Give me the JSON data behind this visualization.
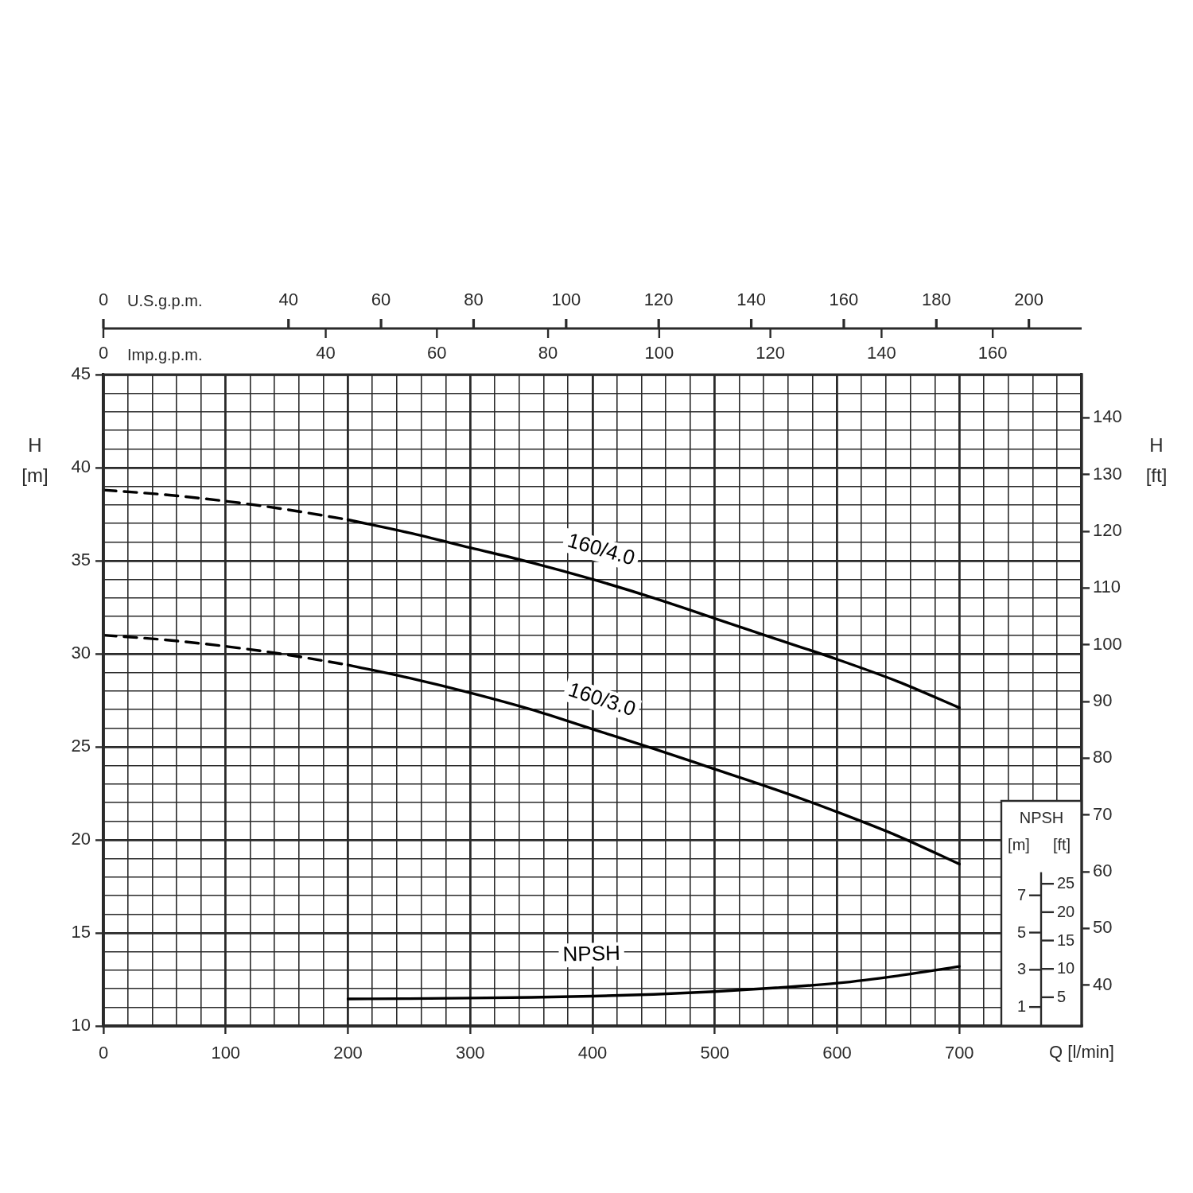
{
  "chart_data": [
    {
      "type": "line",
      "xlabel": "Q [l/min]",
      "ylabel": "H [m]",
      "y2label": "H [ft]",
      "x2label": "U.S.g.p.m.",
      "xlim": [
        0,
        800
      ],
      "xticks": [
        0,
        {
          "value": 20,
          "label": null
        },
        {
          "value": 40,
          "label": null
        },
        {
          "value": 60,
          "label": null
        },
        {
          "value": 80,
          "label": null
        },
        100,
        {
          "value": 120,
          "label": null
        },
        {
          "value": 140,
          "label": null
        },
        {
          "value": 160,
          "label": null
        },
        {
          "value": 180,
          "label": null
        },
        200,
        {
          "value": 220,
          "label": null
        },
        {
          "value": 240,
          "label": null
        },
        {
          "value": 260,
          "label": null
        },
        {
          "value": 280,
          "label": null
        },
        300,
        {
          "value": 320,
          "label": null
        },
        {
          "value": 340,
          "label": null
        },
        {
          "value": 360,
          "label": null
        },
        {
          "value": 380,
          "label": null
        },
        400,
        {
          "value": 420,
          "label": null
        },
        {
          "value": 440,
          "label": null
        },
        {
          "value": 460,
          "label": null
        },
        {
          "value": 480,
          "label": null
        },
        500,
        {
          "value": 520,
          "label": null
        },
        {
          "value": 540,
          "label": null
        },
        {
          "value": 560,
          "label": null
        },
        {
          "value": 580,
          "label": null
        },
        600,
        {
          "value": 620,
          "label": null
        },
        {
          "value": 640,
          "label": null
        },
        {
          "value": 660,
          "label": null
        },
        {
          "value": 680,
          "label": null
        },
        700,
        {
          "value": 720,
          "label": null
        },
        {
          "value": 740,
          "label": null
        },
        {
          "value": 760,
          "label": null
        },
        {
          "value": 780,
          "label": null
        }
      ],
      "ylim": [
        10,
        45
      ],
      "yticks": [
        10,
        {
          "value": 11,
          "label": null
        },
        {
          "value": 12,
          "label": null
        },
        {
          "value": 13,
          "label": null
        },
        {
          "value": 14,
          "label": null
        },
        15,
        {
          "value": 16,
          "label": null
        },
        {
          "value": 17,
          "label": null
        },
        {
          "value": 18,
          "label": null
        },
        {
          "value": 19,
          "label": null
        },
        20,
        {
          "value": 21,
          "label": null
        },
        {
          "value": 22,
          "label": null
        },
        {
          "value": 23,
          "label": null
        },
        {
          "value": 24,
          "label": null
        },
        25,
        {
          "value": 26,
          "label": null
        },
        {
          "value": 27,
          "label": null
        },
        {
          "value": 28,
          "label": null
        },
        {
          "value": 29,
          "label": null
        },
        30,
        {
          "value": 31,
          "label": null
        },
        {
          "value": 32,
          "label": null
        },
        {
          "value": 33,
          "label": null
        },
        {
          "value": 34,
          "label": null
        },
        35,
        {
          "value": 36,
          "label": null
        },
        {
          "value": 37,
          "label": null
        },
        {
          "value": 38,
          "label": null
        },
        {
          "value": 39,
          "label": null
        },
        40,
        {
          "value": 41,
          "label": null
        },
        {
          "value": 42,
          "label": null
        },
        {
          "value": 43,
          "label": null
        },
        {
          "value": 44,
          "label": null
        },
        45
      ],
      "y2lim": [
        32.8,
        147.6
      ],
      "y2ticks": [
        40,
        50,
        60,
        70,
        80,
        90,
        100,
        110,
        120,
        130,
        140
      ],
      "x2lim": [
        0,
        211.4
      ],
      "x2ticks": [
        0,
        40,
        60,
        80,
        100,
        120,
        140,
        160,
        180,
        200
      ],
      "grid": true,
      "legend": false,
      "marker": "none",
      "series": [
        {
          "x": [
            0,
            50,
            100,
            150,
            200
          ],
          "values": [
            38.8,
            38.55,
            38.2,
            37.75,
            37.2
          ],
          "color": "#000000",
          "line_style": "dashed"
        },
        {
          "name": "160/4.0",
          "x": [
            200,
            250,
            300,
            350,
            400,
            450,
            500,
            550,
            600,
            650,
            700
          ],
          "values": [
            37.2,
            36.5,
            35.7,
            34.9,
            34.0,
            33.0,
            31.9,
            30.8,
            29.7,
            28.5,
            27.1
          ],
          "color": "#000000",
          "line_style": "solid"
        },
        {
          "x": [
            0,
            50,
            100,
            150,
            200
          ],
          "values": [
            31.0,
            30.75,
            30.4,
            29.95,
            29.4
          ],
          "color": "#000000",
          "line_style": "dashed"
        },
        {
          "name": "160/3.0",
          "x": [
            200,
            250,
            300,
            350,
            400,
            450,
            500,
            550,
            600,
            650,
            700
          ],
          "values": [
            29.4,
            28.7,
            27.9,
            27.0,
            25.95,
            24.9,
            23.8,
            22.7,
            21.5,
            20.2,
            18.7
          ],
          "color": "#000000",
          "line_style": "solid"
        }
      ]
    },
    {
      "type": "line",
      "title": "NPSH",
      "ylabel": "[m]",
      "y2label": "[ft]",
      "x2label": "Imp.g.p.m.",
      "xlim": [
        0,
        800
      ],
      "ylim": [
        0,
        35
      ],
      "yticks": [
        1,
        3,
        5,
        7
      ],
      "y2lim": [
        0,
        114.8
      ],
      "y2ticks": [
        5,
        10,
        15,
        20,
        25
      ],
      "x2lim": [
        0,
        176.0
      ],
      "x2ticks": [
        0,
        40,
        60,
        80,
        100,
        120,
        140,
        160
      ],
      "tick_labels": "y",
      "legend": false,
      "marker": "none",
      "series": [
        {
          "name": "NPSH",
          "x": [
            200,
            250,
            300,
            350,
            400,
            450,
            500,
            550,
            600,
            650,
            700
          ],
          "values": [
            1.45,
            1.47,
            1.5,
            1.54,
            1.6,
            1.7,
            1.85,
            2.05,
            2.3,
            2.7,
            3.2
          ],
          "color": "#000000",
          "line_style": "solid"
        }
      ]
    }
  ]
}
